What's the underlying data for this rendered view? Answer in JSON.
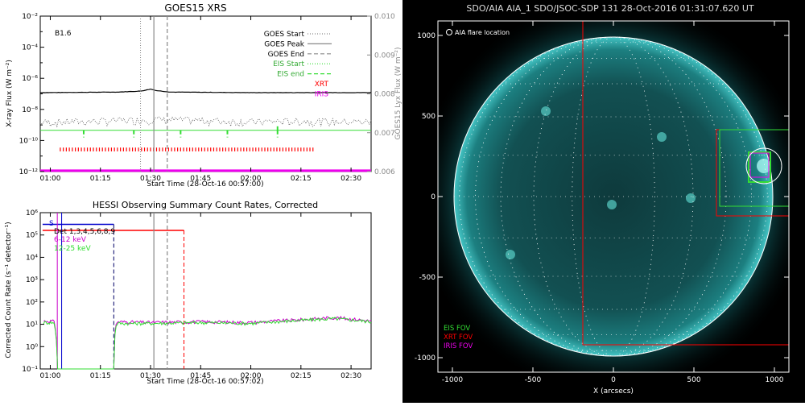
{
  "chart_data": [
    {
      "type": "line",
      "title": "GOES15 XRS",
      "xlabel": "Start Time (28-Oct-16 00:57:00)",
      "ylabel": "X-ray Flux (W m⁻²)",
      "ylabel_right": "GOES15 Lyx Flux (W m⁻²)",
      "annotation": "B1.6",
      "x_ticks": [
        "01:00",
        "01:15",
        "01:30",
        "01:45",
        "02:00",
        "02:15",
        "02:30"
      ],
      "x_range": [
        "00:57",
        "02:36"
      ],
      "y_scale": "log",
      "ylim": [
        1e-12,
        0.01
      ],
      "y_ticks": [
        "10⁻²",
        "10⁻⁴",
        "10⁻⁶",
        "10⁻⁸",
        "10⁻¹⁰",
        "10⁻¹²"
      ],
      "y2lim": [
        0.006,
        0.01
      ],
      "y2_ticks": [
        "0.010",
        "0.009",
        "0.008",
        "0.007",
        "0.006"
      ],
      "legend": [
        {
          "label": "GOES Start",
          "style": "dotted",
          "color": "#888888"
        },
        {
          "label": "GOES Peak",
          "style": "solid",
          "color": "#888888"
        },
        {
          "label": "GOES End",
          "style": "dashed",
          "color": "#888888"
        },
        {
          "label": "EIS Start",
          "style": "dotted",
          "color": "#33dd33"
        },
        {
          "label": "EIS end",
          "style": "dashed",
          "color": "#33dd33"
        },
        {
          "label": "XRT",
          "style": "text",
          "color": "#ff0000"
        },
        {
          "label": "IRIS",
          "style": "text",
          "color": "#ee00ee"
        }
      ],
      "markers": {
        "goes_start": "01:27",
        "goes_peak": "01:31",
        "goes_end": "01:35"
      },
      "series": [
        {
          "label": "long channel",
          "color": "#000000",
          "x": [
            "00:57",
            "01:20",
            "01:27",
            "01:30",
            "01:32",
            "01:36",
            "02:00",
            "02:36"
          ],
          "values": [
            1.2e-07,
            1.3e-07,
            1.5e-07,
            2e-07,
            1.6e-07,
            1.3e-07,
            1.2e-07,
            1.2e-07
          ]
        },
        {
          "label": "short channel",
          "color": "#555555",
          "x": [
            "00:57",
            "01:15",
            "01:30",
            "01:45",
            "02:00",
            "02:15",
            "02:36"
          ],
          "values": [
            1.5e-09,
            1.8e-09,
            2.3e-09,
            2e-09,
            1.6e-09,
            1.8e-09,
            1.6e-09
          ]
        }
      ],
      "eis_rasters": [
        "00:57",
        "01:10",
        "01:25",
        "01:39",
        "01:53",
        "02:08",
        "02:36"
      ],
      "xrt_coverage": [
        "01:03",
        "02:19"
      ],
      "iris_coverage": [
        "00:57",
        "02:36"
      ]
    },
    {
      "type": "line",
      "title": "HESSI Observing Summary Count Rates, Corrected",
      "xlabel": "Start Time (28-Oct-16 00:57:02)",
      "ylabel": "Corrected Count Rate (s⁻¹ detector⁻¹)",
      "x_ticks": [
        "01:00",
        "01:15",
        "01:30",
        "01:45",
        "02:00",
        "02:15",
        "02:30"
      ],
      "x_range": [
        "00:57",
        "02:36"
      ],
      "y_scale": "log",
      "ylim": [
        0.1,
        1000000.0
      ],
      "y_ticks": [
        "10⁶",
        "10⁵",
        "10⁴",
        "10³",
        "10²",
        "10¹",
        "10⁰",
        "10⁻¹"
      ],
      "labels": [
        {
          "text": "S",
          "color": "#0000cc"
        },
        {
          "text": "Det 1,3,4,5,6,8,9",
          "color": "#000000"
        },
        {
          "text": "6-12 keV",
          "color": "#cc00cc"
        },
        {
          "text": "12-25 keV",
          "color": "#33dd33"
        }
      ],
      "series": [
        {
          "name": "6-12 keV",
          "color": "#cc00cc",
          "x": [
            "00:58",
            "01:01",
            "01:02",
            "01:19",
            "01:20",
            "01:30",
            "01:45",
            "02:00",
            "02:15",
            "02:25",
            "02:36"
          ],
          "values": [
            14,
            14,
            0.1,
            0.1,
            13,
            12,
            13,
            12,
            16,
            20,
            14
          ]
        },
        {
          "name": "12-25 keV",
          "color": "#33dd33",
          "x": [
            "00:58",
            "01:01",
            "01:02",
            "01:19",
            "01:20",
            "01:30",
            "01:45",
            "02:00",
            "02:15",
            "02:25",
            "02:36"
          ],
          "values": [
            12,
            12,
            0.1,
            0.1,
            11,
            11,
            12,
            11,
            15,
            18,
            13
          ]
        }
      ],
      "markers": {
        "goes_start": "01:27",
        "goes_peak": "01:31",
        "goes_end": "01:35",
        "xrt_end": "01:40",
        "blue_end": "01:19"
      }
    },
    {
      "type": "heatmap",
      "title": "SDO/AIA AIA_1 SDO/JSOC-SDP 131 28-Oct-2016 01:31:07.620 UT",
      "xlabel": "X (arcsecs)",
      "ylabel": "",
      "x_ticks": [
        "-1000",
        "-500",
        "0",
        "500",
        "1000"
      ],
      "y_ticks": [
        "1000",
        "500",
        "0",
        "-500",
        "-1000"
      ],
      "xlim": [
        -1090,
        1090
      ],
      "ylim": [
        -1090,
        1090
      ],
      "legend_top": "AIA flare location",
      "legend": [
        {
          "label": "EIS FOV",
          "color": "#33dd33"
        },
        {
          "label": "XRT FOV",
          "color": "#ff0000"
        },
        {
          "label": "IRIS FOV",
          "color": "#ee00ee"
        }
      ],
      "solar_radius": 990,
      "fov_boxes": [
        {
          "name": "XRT FOV",
          "color": "#ff0000",
          "x": [
            -190,
            1090
          ],
          "y": [
            -920,
            1090
          ]
        },
        {
          "name": "XRT FOV",
          "color": "#ff0000",
          "x": [
            640,
            1090
          ],
          "y": [
            -120,
            415
          ]
        },
        {
          "name": "EIS FOV",
          "color": "#33dd33",
          "x": [
            660,
            1120
          ],
          "y": [
            -60,
            415
          ]
        },
        {
          "name": "EIS FOV",
          "color": "#33dd33",
          "x": [
            840,
            975
          ],
          "y": [
            90,
            275
          ]
        },
        {
          "name": "IRIS FOV",
          "color": "#ee00ee",
          "x": [
            850,
            965
          ],
          "y": [
            120,
            270
          ]
        }
      ],
      "flare_location": {
        "x": 935,
        "y": 190,
        "radius": 110
      },
      "active_regions": [
        {
          "x": -10,
          "y": -50
        },
        {
          "x": 480,
          "y": -10
        },
        {
          "x": -640,
          "y": -360
        },
        {
          "x": 300,
          "y": 370
        },
        {
          "x": -420,
          "y": 530
        }
      ]
    }
  ]
}
